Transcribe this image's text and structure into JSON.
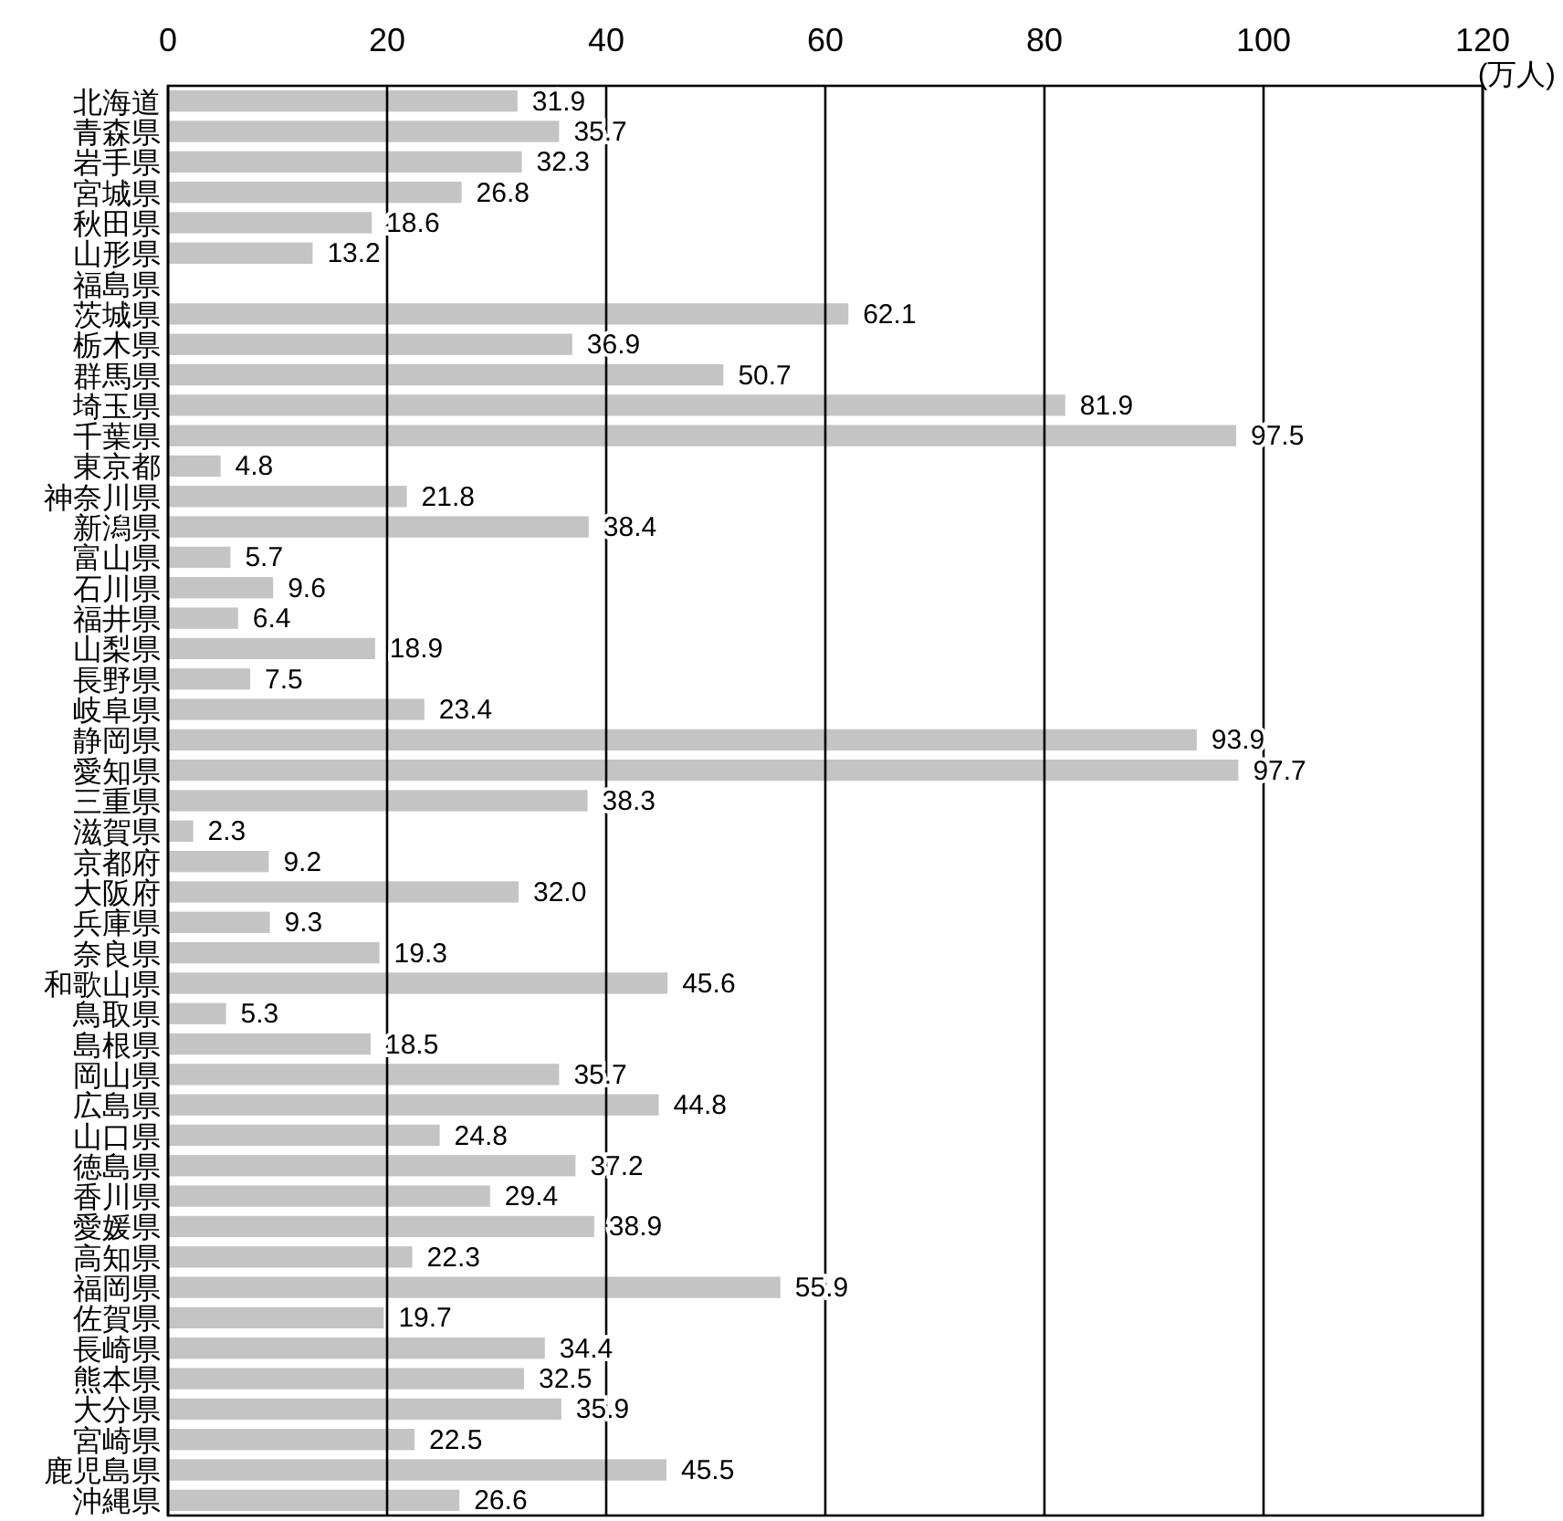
{
  "chart_data": {
    "type": "bar",
    "orientation": "horizontal",
    "xlabel": "(万人)",
    "categories": [
      "北海道",
      "青森県",
      "岩手県",
      "宮城県",
      "秋田県",
      "山形県",
      "福島県",
      "茨城県",
      "栃木県",
      "群馬県",
      "埼玉県",
      "千葉県",
      "東京都",
      "神奈川県",
      "新潟県",
      "富山県",
      "石川県",
      "福井県",
      "山梨県",
      "長野県",
      "岐阜県",
      "静岡県",
      "愛知県",
      "三重県",
      "滋賀県",
      "京都府",
      "大阪府",
      "兵庫県",
      "奈良県",
      "和歌山県",
      "鳥取県",
      "島根県",
      "岡山県",
      "広島県",
      "山口県",
      "徳島県",
      "香川県",
      "愛媛県",
      "高知県",
      "福岡県",
      "佐賀県",
      "長崎県",
      "熊本県",
      "大分県",
      "宮崎県",
      "鹿児島県",
      "沖縄県"
    ],
    "values": [
      31.9,
      35.7,
      32.3,
      26.8,
      18.6,
      13.2,
      null,
      62.1,
      36.9,
      50.7,
      81.9,
      97.5,
      4.8,
      21.8,
      38.4,
      5.7,
      9.6,
      6.4,
      18.9,
      7.5,
      23.4,
      93.9,
      97.7,
      38.3,
      2.3,
      9.2,
      32.0,
      9.3,
      19.3,
      45.6,
      5.3,
      18.5,
      35.7,
      44.8,
      24.8,
      37.2,
      29.4,
      38.9,
      22.3,
      55.9,
      19.7,
      34.4,
      32.5,
      35.9,
      22.5,
      45.5,
      26.6
    ],
    "value_labels": [
      "31.9",
      "35.7",
      "32.3",
      "26.8",
      "18.6",
      "13.2",
      null,
      "62.1",
      "36.9",
      "50.7",
      "81.9",
      "97.5",
      "4.8",
      "21.8",
      "38.4",
      "5.7",
      "9.6",
      "6.4",
      "18.9",
      "7.5",
      "23.4",
      "93.9",
      "97.7",
      "38.3",
      "2.3",
      "9.2",
      "32.0",
      "9.3",
      "19.3",
      "45.6",
      "5.3",
      "18.5",
      "35.7",
      "44.8",
      "24.8",
      "37.2",
      "29.4",
      "38.9",
      "22.3",
      "55.9",
      "19.7",
      "34.4",
      "32.5",
      "35.9",
      "22.5",
      "45.5",
      "26.6"
    ],
    "color": "#c4c4c4",
    "xlim": [
      0,
      120
    ],
    "xticks": [
      0,
      20,
      40,
      60,
      80,
      100,
      120
    ],
    "grid": "x"
  }
}
